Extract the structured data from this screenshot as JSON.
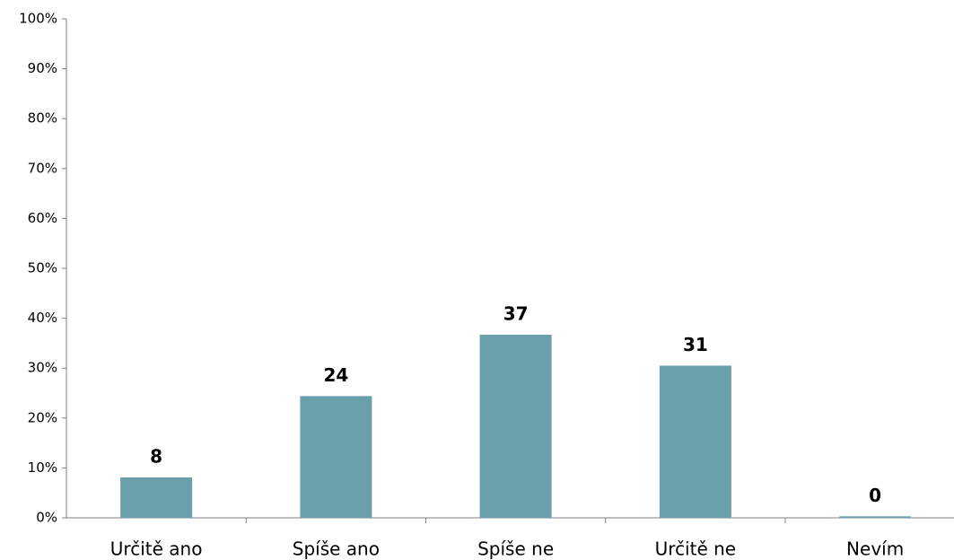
{
  "chart_data": {
    "type": "bar",
    "categories": [
      "Určitě ano",
      "Spíše ano",
      "Spíše ne",
      "Určitě ne",
      "Nevím"
    ],
    "values": [
      8.1,
      24.4,
      36.7,
      30.5,
      0.3
    ],
    "value_labels": [
      "8",
      "24",
      "37",
      "31",
      "0"
    ],
    "color": "#6a9fac",
    "ylim": [
      0,
      100
    ],
    "yticks": [
      {
        "value": 0,
        "label": "0%"
      },
      {
        "value": 10,
        "label": "10%"
      },
      {
        "value": 20,
        "label": "20%"
      },
      {
        "value": 30,
        "label": "30%"
      },
      {
        "value": 40,
        "label": "40%"
      },
      {
        "value": 50,
        "label": "50%"
      },
      {
        "value": 60,
        "label": "60%"
      },
      {
        "value": 70,
        "label": "70%"
      },
      {
        "value": 80,
        "label": "80%"
      },
      {
        "value": 90,
        "label": "90%"
      },
      {
        "value": 100,
        "label": "100%"
      }
    ],
    "grid": false
  }
}
